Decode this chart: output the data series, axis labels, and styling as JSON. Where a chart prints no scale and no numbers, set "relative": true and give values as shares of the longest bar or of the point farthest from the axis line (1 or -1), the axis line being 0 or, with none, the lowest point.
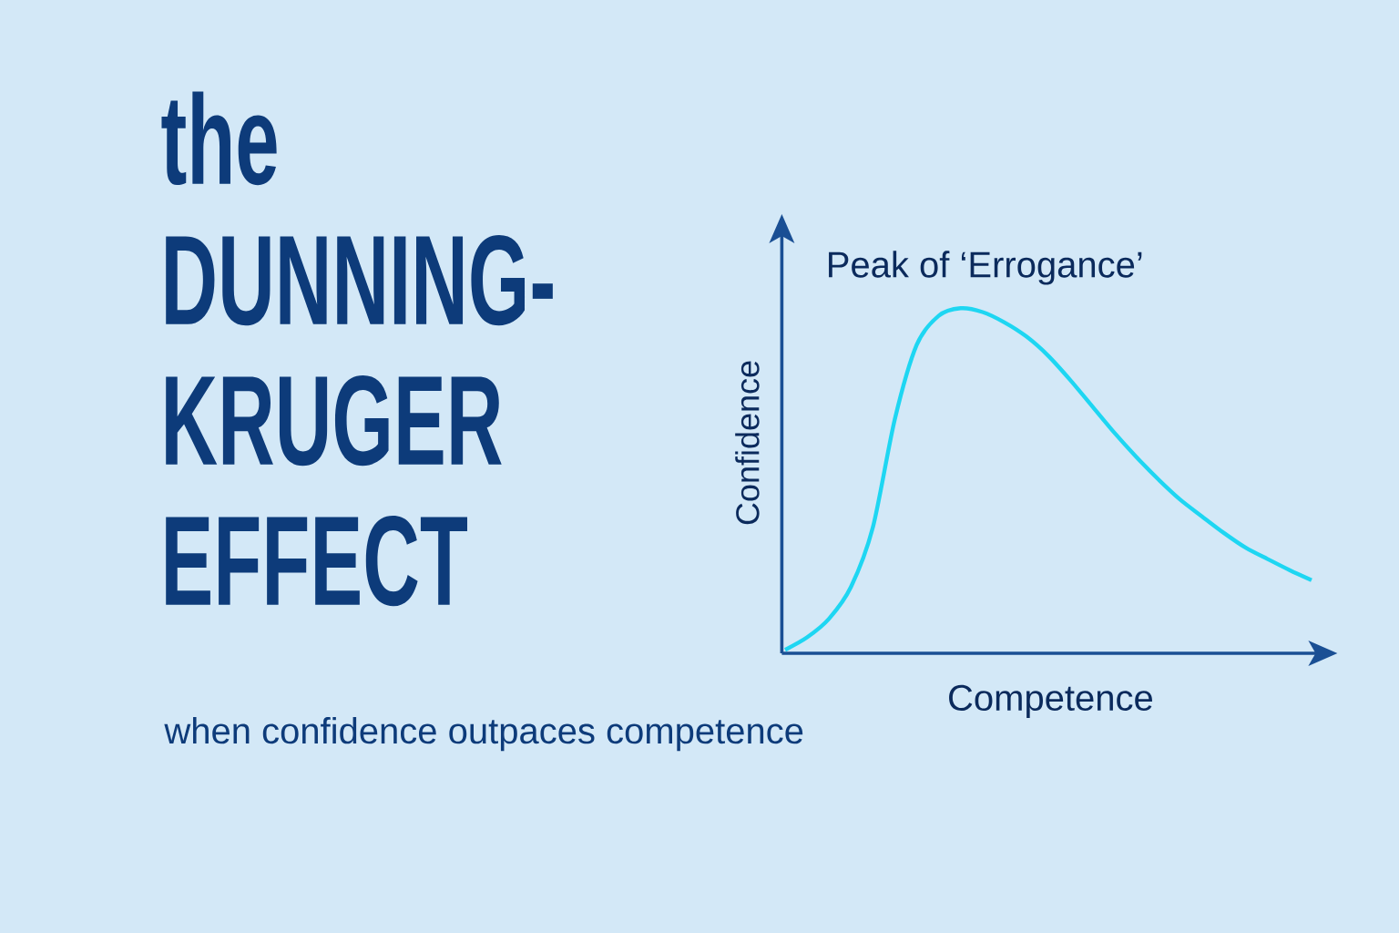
{
  "chart_data": {
    "type": "line",
    "title": "the DUNNING-KRUGER EFFECT",
    "subtitle": "when confidence outpaces competence",
    "xlabel": "Competence",
    "ylabel": "Confidence",
    "annotations": [
      "Peak of ‘Errogance’"
    ],
    "relative": true,
    "categories": [
      null,
      null,
      null,
      null,
      null,
      null,
      null,
      null,
      null,
      null,
      null,
      null,
      null,
      null,
      null,
      null,
      null,
      null,
      null,
      null,
      null,
      null,
      null,
      null,
      null
    ],
    "series": [
      {
        "color": "#1ed6f2",
        "values": [
          0.01,
          0.046,
          0.1,
          0.192,
          0.365,
          0.678,
          0.894,
          0.978,
          1.0,
          0.989,
          0.959,
          0.918,
          0.862,
          0.792,
          0.716,
          0.64,
          0.57,
          0.505,
          0.446,
          0.397,
          0.349,
          0.306,
          0.273,
          0.241,
          0.212
        ]
      }
    ]
  }
}
